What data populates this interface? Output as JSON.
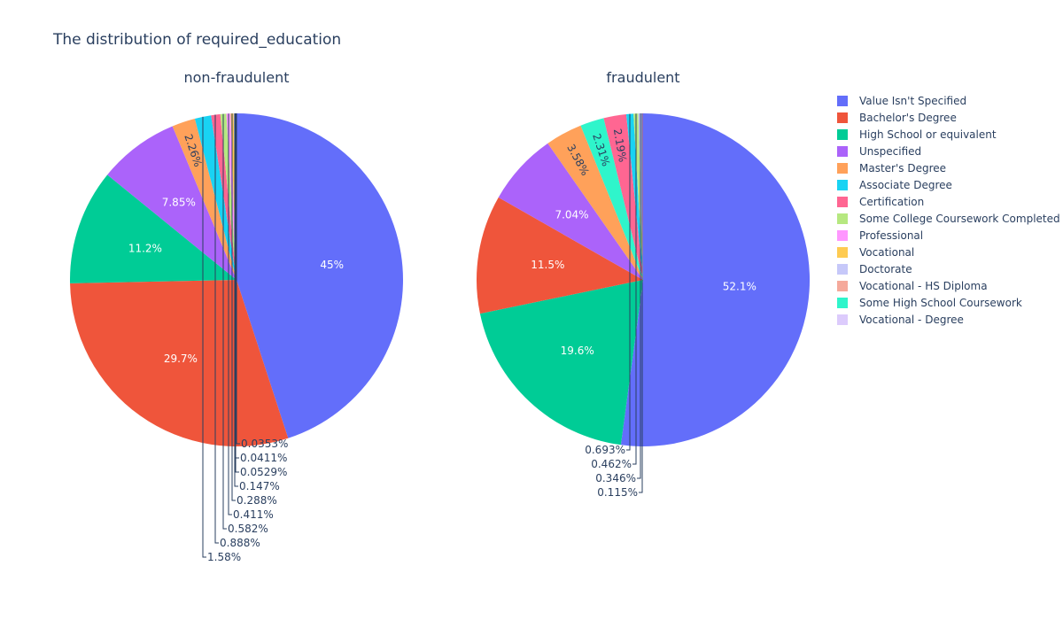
{
  "chart_data": {
    "type": "pie",
    "title": "The distribution of required_education",
    "legend": {
      "placement": "right",
      "entries": [
        {
          "label": "Value Isn't Specified",
          "color": "#636efa"
        },
        {
          "label": "Bachelor's Degree",
          "color": "#EF553B"
        },
        {
          "label": "High School or equivalent",
          "color": "#00cc96"
        },
        {
          "label": "Unspecified",
          "color": "#ab63fa"
        },
        {
          "label": "Master's Degree",
          "color": "#FFA15A"
        },
        {
          "label": "Associate Degree",
          "color": "#19d3f3"
        },
        {
          "label": "Certification",
          "color": "#FF6692"
        },
        {
          "label": "Some College Coursework Completed",
          "color": "#B6E880"
        },
        {
          "label": "Professional",
          "color": "#FF97FF"
        },
        {
          "label": "Vocational",
          "color": "#FECB52"
        },
        {
          "label": "Doctorate",
          "color": "#c6c8f9"
        },
        {
          "label": "Vocational - HS Diploma",
          "color": "#f5a99b"
        },
        {
          "label": "Some High School Coursework",
          "color": "#2ff5cb"
        },
        {
          "label": "Vocational - Degree",
          "color": "#dccbfc"
        }
      ]
    },
    "subplots": [
      {
        "title": "non-fraudulent",
        "slices": [
          {
            "label": "Value Isn't Specified",
            "value": 45,
            "text": "45%"
          },
          {
            "label": "Bachelor's Degree",
            "value": 29.7,
            "text": "29.7%"
          },
          {
            "label": "High School or equivalent",
            "value": 11.2,
            "text": "11.2%"
          },
          {
            "label": "Unspecified",
            "value": 7.85,
            "text": "7.85%"
          },
          {
            "label": "Master's Degree",
            "value": 2.26,
            "text": "2.26%"
          },
          {
            "label": "Associate Degree",
            "value": 1.58,
            "text": "1.58%"
          },
          {
            "label": "Certification",
            "value": 0.888,
            "text": "0.888%"
          },
          {
            "label": "Some College Coursework Completed",
            "value": 0.582,
            "text": "0.582%"
          },
          {
            "label": "Professional",
            "value": 0.411,
            "text": "0.411%"
          },
          {
            "label": "Vocational",
            "value": 0.288,
            "text": "0.288%"
          },
          {
            "label": "Doctorate",
            "value": 0.147,
            "text": "0.147%"
          },
          {
            "label": "Vocational - HS Diploma",
            "value": 0.0529,
            "text": "0.0529%"
          },
          {
            "label": "Some High School Coursework",
            "value": 0.0411,
            "text": "0.0411%"
          },
          {
            "label": "Vocational - Degree",
            "value": 0.0353,
            "text": "0.0353%"
          }
        ]
      },
      {
        "title": "fraudulent",
        "slices": [
          {
            "label": "Value Isn't Specified",
            "value": 52.1,
            "text": "52.1%"
          },
          {
            "label": "High School or equivalent",
            "value": 19.6,
            "text": "19.6%"
          },
          {
            "label": "Bachelor's Degree",
            "value": 11.5,
            "text": "11.5%"
          },
          {
            "label": "Unspecified",
            "value": 7.04,
            "text": "7.04%"
          },
          {
            "label": "Master's Degree",
            "value": 3.58,
            "text": "3.58%"
          },
          {
            "label": "Some High School Coursework",
            "value": 2.31,
            "text": "2.31%"
          },
          {
            "label": "Certification",
            "value": 2.19,
            "text": "2.19%"
          },
          {
            "label": "Associate Degree",
            "value": 0.693,
            "text": "0.693%"
          },
          {
            "label": "Some College Coursework Completed",
            "value": 0.462,
            "text": "0.462%"
          },
          {
            "label": "Doctorate",
            "value": 0.346,
            "text": "0.346%"
          },
          {
            "label": "Professional",
            "value": 0.115,
            "text": "0.115%"
          }
        ]
      }
    ]
  }
}
